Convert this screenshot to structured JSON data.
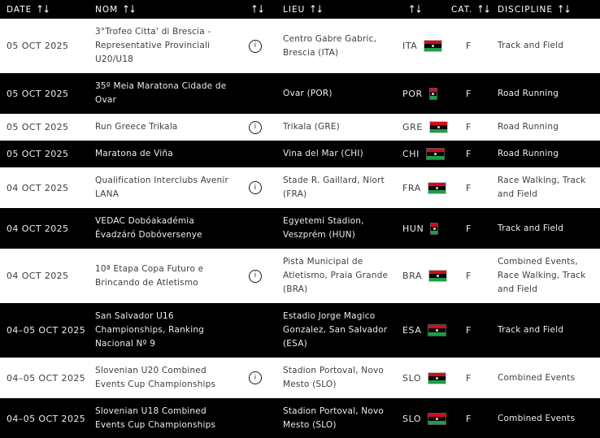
{
  "table": {
    "columns": [
      {
        "label": "DATE",
        "sortable": true
      },
      {
        "label": "NOM",
        "sortable": true
      },
      {
        "label": "",
        "sortable": true
      },
      {
        "label": "LIEU",
        "sortable": true
      },
      {
        "label": "",
        "sortable": true
      },
      {
        "label": "CAT.",
        "sortable": true
      },
      {
        "label": "DISCIPLINE",
        "sortable": true
      }
    ],
    "rows": [
      {
        "date": "05 OCT 2025",
        "name": "3°Trofeo Citta' di Brescia -\nRepresentative Provinciali\nU20/U18",
        "has_info": true,
        "venue": "Centro Gabre Gabric,\nBrescia (ITA)",
        "country_code": "ITA",
        "flag_narrow": false,
        "category": "F",
        "discipline": "Track and Field",
        "theme": "light"
      },
      {
        "date": "05 OCT 2025",
        "name": "35º Meia Maratona Cidade de\nOvar",
        "has_info": false,
        "venue": "Ovar (POR)",
        "country_code": "POR",
        "flag_narrow": true,
        "category": "F",
        "discipline": "Road Running",
        "theme": "dark"
      },
      {
        "date": "05 OCT 2025",
        "name": "Run Greece Trikala",
        "has_info": true,
        "venue": "Trikala (GRE)",
        "country_code": "GRE",
        "flag_narrow": false,
        "category": "F",
        "discipline": "Road Running",
        "theme": "light"
      },
      {
        "date": "05 OCT 2025",
        "name": "Maratona de Viña",
        "has_info": false,
        "venue": "Vina del Mar (CHI)",
        "country_code": "CHI",
        "flag_narrow": false,
        "category": "F",
        "discipline": "Road Running",
        "theme": "dark"
      },
      {
        "date": "04 OCT 2025",
        "name": "Qualification Interclubs Avenir\nLANA",
        "has_info": true,
        "venue": "Stade R. Gaillard, Niort\n(FRA)",
        "country_code": "FRA",
        "flag_narrow": false,
        "category": "F",
        "discipline": "Race Walking, Track\nand Field",
        "theme": "light"
      },
      {
        "date": "04 OCT 2025",
        "name": "VEDAC Dobóakadémia\nÉvadzáró Dobóversenye",
        "has_info": false,
        "venue": "Egyetemi Stadion,\nVeszprém (HUN)",
        "country_code": "HUN",
        "flag_narrow": true,
        "category": "F",
        "discipline": "Track and Field",
        "theme": "dark"
      },
      {
        "date": "04 OCT 2025",
        "name": "10ª Etapa Copa Futuro e\nBrincando de Atletismo",
        "has_info": true,
        "venue": "Pista Municipal de\nAtletismo, Praia Grande\n(BRA)",
        "country_code": "BRA",
        "flag_narrow": false,
        "category": "F",
        "discipline": "Combined Events,\nRace Walking, Track\nand Field",
        "theme": "light"
      },
      {
        "date": "04–05 OCT 2025",
        "name": "San Salvador U16\nChampionships, Ranking\nNacional Nº 9",
        "has_info": false,
        "venue": "Estadio Jorge Magico\nGonzalez, San Salvador\n(ESA)",
        "country_code": "ESA",
        "flag_narrow": false,
        "category": "F",
        "discipline": "Track and Field",
        "theme": "dark"
      },
      {
        "date": "04–05 OCT 2025",
        "name": "Slovenian U20 Combined\nEvents Cup Championships",
        "has_info": true,
        "venue": "Stadion Portoval, Novo\nMesto (SLO)",
        "country_code": "SLO",
        "flag_narrow": false,
        "category": "F",
        "discipline": "Combined Events",
        "theme": "light"
      },
      {
        "date": "04–05 OCT 2025",
        "name": "Slovenian U18 Combined\nEvents Cup Championships",
        "has_info": false,
        "venue": "Stadion Portoval, Novo\nMesto (SLO)",
        "country_code": "SLO",
        "flag_narrow": false,
        "category": "F",
        "discipline": "Combined Events",
        "theme": "dark"
      }
    ]
  },
  "icons": {
    "sort_glyph": "↑↓",
    "info_glyph": "i"
  },
  "colors": {
    "header_bg": "#000000",
    "row_dark_bg": "#000000",
    "row_light_bg": "#ffffff",
    "flag_red": "#d40a1e",
    "flag_black": "#0a0a0a",
    "flag_green": "#1e9e46"
  }
}
